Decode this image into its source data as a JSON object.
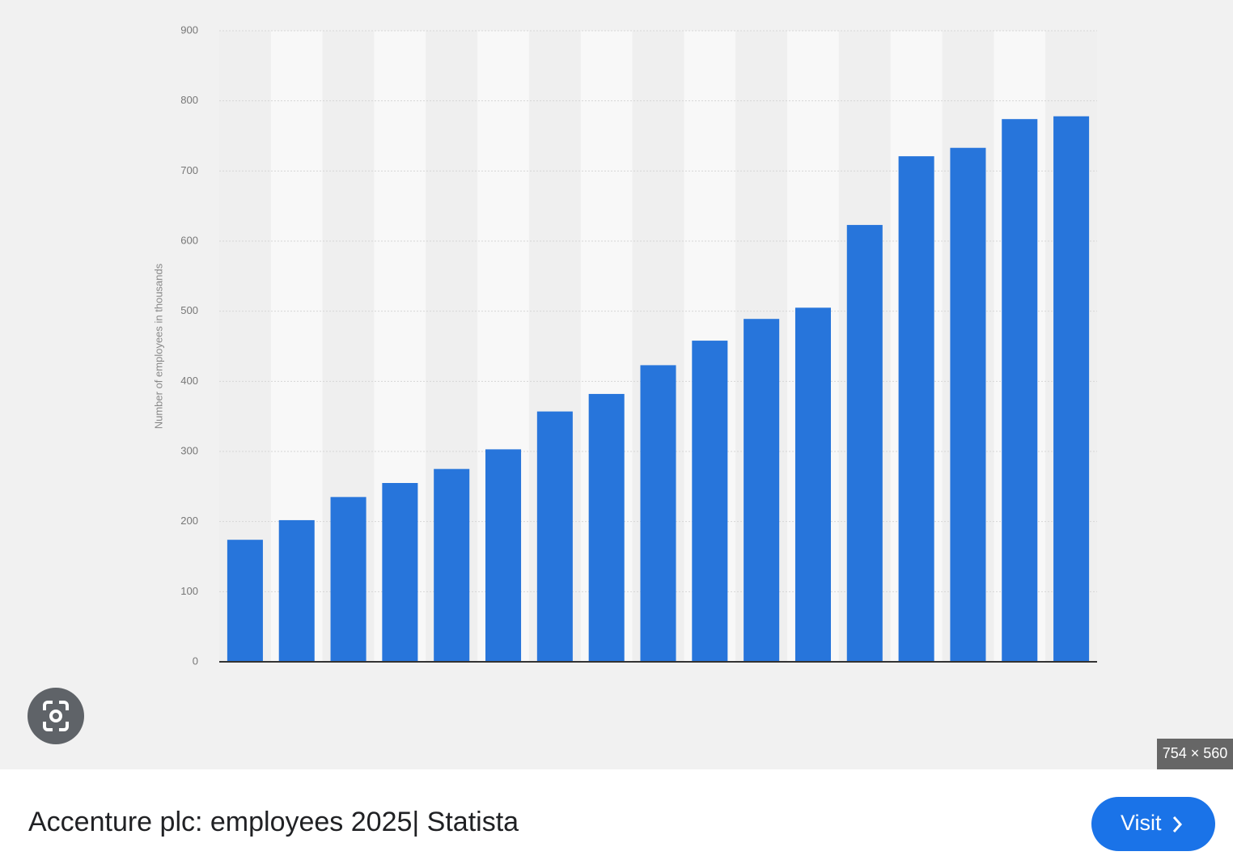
{
  "chart_data": {
    "type": "bar",
    "y_axis_label": "Number of employees in thousands",
    "categories": [
      null,
      null,
      null,
      null,
      null,
      null,
      null,
      null,
      null,
      null,
      null,
      null,
      null,
      null,
      null,
      null,
      null
    ],
    "values": [
      174,
      202,
      235,
      255,
      275,
      303,
      357,
      382,
      423,
      458,
      489,
      505,
      623,
      721,
      733,
      774,
      778
    ],
    "color": "#2775db",
    "ylim": [
      0,
      900
    ],
    "yticks": [
      0,
      100,
      200,
      300,
      400,
      500,
      600,
      700,
      800,
      900
    ],
    "grid": true
  },
  "image_size": "754 × 560",
  "caption": "Accenture plc: employees 2025| Statista",
  "button": "Visit"
}
